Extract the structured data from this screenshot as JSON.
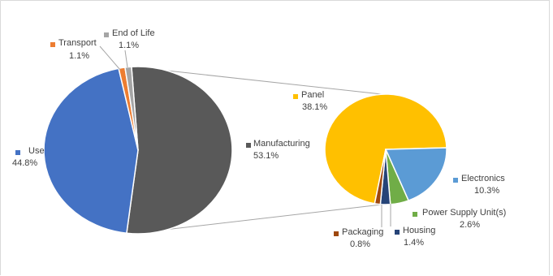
{
  "colors": {
    "frame": "#d9d9d9",
    "connector": "#a6a6a6",
    "text": "#404040"
  },
  "chart_data": {
    "type": "pie",
    "title": "",
    "subtitle": "",
    "main_pie": {
      "slices": [
        {
          "name": "Manufacturing",
          "value": 53.1,
          "label": "53.1%",
          "color": "#595959"
        },
        {
          "name": "Use",
          "value": 44.8,
          "label": "44.8%",
          "color": "#4472c4"
        },
        {
          "name": "Transport",
          "value": 1.1,
          "label": "1.1%",
          "color": "#ed7d31"
        },
        {
          "name": "End of Life",
          "value": 1.1,
          "label": "1.1%",
          "color": "#a5a5a5"
        }
      ]
    },
    "breakout_pie": {
      "of": "Manufacturing",
      "slices": [
        {
          "name": "Panel",
          "value": 38.1,
          "label": "38.1%",
          "color": "#ffc000"
        },
        {
          "name": "Electronics",
          "value": 10.3,
          "label": "10.3%",
          "color": "#5b9bd5"
        },
        {
          "name": "Power Supply Unit(s)",
          "value": 2.6,
          "label": "2.6%",
          "color": "#70ad47"
        },
        {
          "name": "Housing",
          "value": 1.4,
          "label": "1.4%",
          "color": "#264478"
        },
        {
          "name": "Packaging",
          "value": 0.8,
          "label": "0.8%",
          "color": "#9e480e"
        }
      ]
    }
  }
}
